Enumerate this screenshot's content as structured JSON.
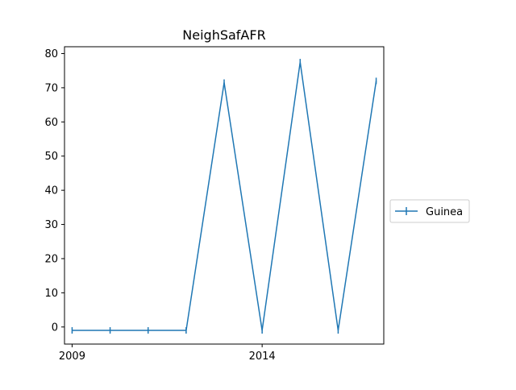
{
  "chart_data": {
    "type": "line",
    "title": "NeighSafAFR",
    "xlabel": "",
    "ylabel": "",
    "x_ticks": [
      "2009",
      "2014"
    ],
    "y_ticks": [
      "0",
      "10",
      "20",
      "30",
      "40",
      "50",
      "60",
      "70",
      "80"
    ],
    "xlim": [
      2008.8,
      2017.2
    ],
    "ylim": [
      -5,
      82
    ],
    "legend_position": "right",
    "grid": false,
    "series": [
      {
        "name": "Guinea",
        "color": "#1f77b4",
        "marker": "vertical-tick",
        "x": [
          2009,
          2010,
          2011,
          2012,
          2013,
          2014,
          2015,
          2016,
          2017
        ],
        "y": [
          -1,
          -1,
          -1,
          -1,
          71.5,
          -1,
          77.5,
          -1,
          72
        ]
      }
    ]
  }
}
